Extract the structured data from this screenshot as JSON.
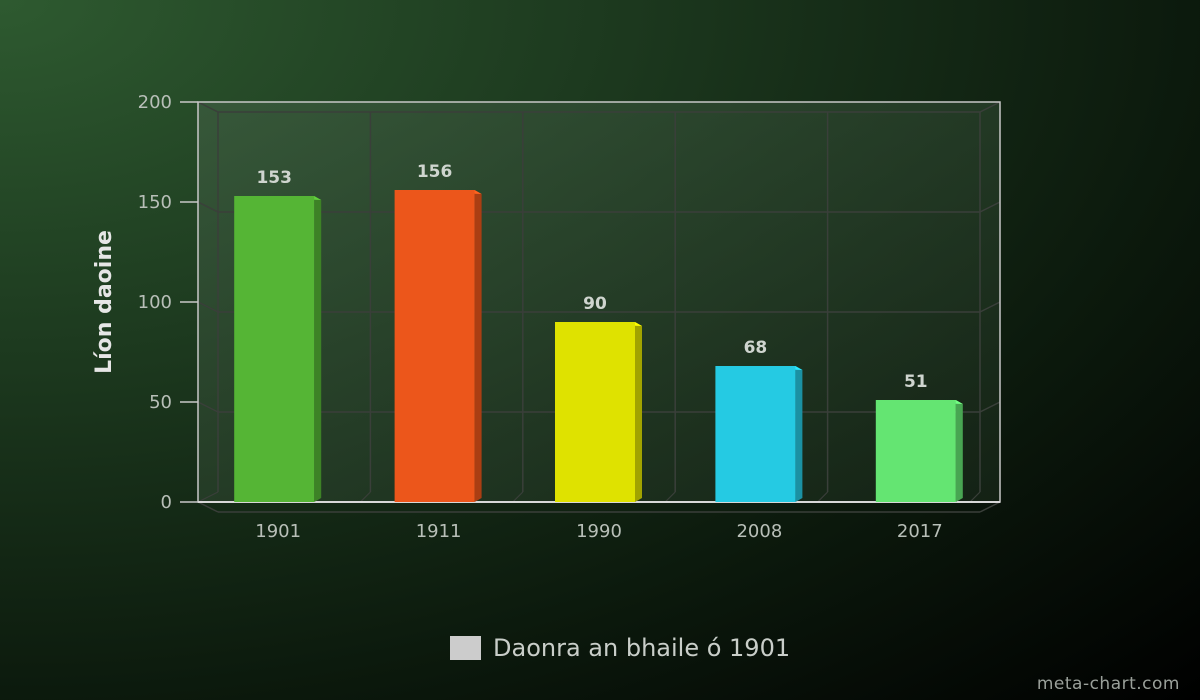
{
  "chart_data": {
    "type": "bar",
    "categories": [
      "1901",
      "1911",
      "1990",
      "2008",
      "2017"
    ],
    "values": [
      153,
      156,
      90,
      68,
      51
    ],
    "bar_colors": [
      "#55b535",
      "#ec561b",
      "#dfe200",
      "#25cae3",
      "#64e572"
    ],
    "ylabel": "Líon daoine",
    "xlabel": "",
    "ylim": [
      0,
      200
    ],
    "yticks": [
      0,
      50,
      100,
      150,
      200
    ],
    "grid": true,
    "legend": {
      "position": "bottom",
      "entries": [
        {
          "label": "Daonra an bhaile ó 1901",
          "color": "#cccccc"
        }
      ]
    }
  },
  "watermark": "meta-chart.com"
}
